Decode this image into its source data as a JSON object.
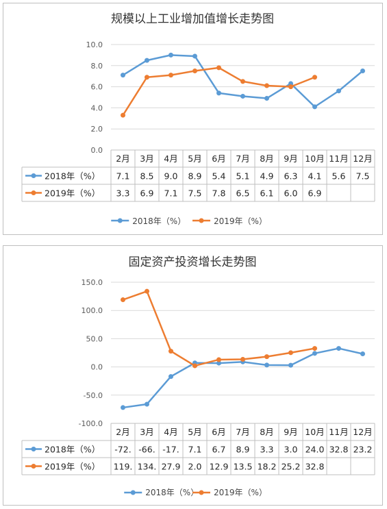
{
  "charts": [
    {
      "title": "规模以上工业增加值增长走势图",
      "chart_data": {
        "type": "line",
        "categories": [
          "2月",
          "3月",
          "4月",
          "5月",
          "6月",
          "7月",
          "8月",
          "9月",
          "10月",
          "11月",
          "12月"
        ],
        "ylim": [
          0,
          10
        ],
        "yticks": [
          "0.0",
          "2.0",
          "4.0",
          "6.0",
          "8.0",
          "10.0"
        ],
        "grid": true,
        "legend_position": "bottom",
        "series": [
          {
            "name": "2018年（%）",
            "color": "#5b9bd5",
            "values": [
              7.1,
              8.5,
              9.0,
              8.9,
              5.4,
              5.1,
              4.9,
              6.3,
              4.1,
              5.6,
              7.5
            ],
            "labels": [
              "7.1",
              "8.5",
              "9.0",
              "8.9",
              "5.4",
              "5.1",
              "4.9",
              "6.3",
              "4.1",
              "5.6",
              "7.5"
            ]
          },
          {
            "name": "2019年（%）",
            "color": "#ed7d31",
            "values": [
              3.3,
              6.9,
              7.1,
              7.5,
              7.8,
              6.5,
              6.1,
              6.0,
              6.9,
              null,
              null
            ],
            "labels": [
              "3.3",
              "6.9",
              "7.1",
              "7.5",
              "7.8",
              "6.5",
              "6.1",
              "6.0",
              "6.9",
              "",
              ""
            ]
          }
        ]
      }
    },
    {
      "title": "固定资产投资增长走势图",
      "chart_data": {
        "type": "line",
        "categories": [
          "2月",
          "3月",
          "4月",
          "5月",
          "6月",
          "7月",
          "8月",
          "9月",
          "10月",
          "11月",
          "12月"
        ],
        "ylim": [
          -100,
          150
        ],
        "yticks": [
          "-100.0",
          "-50.0",
          "0.0",
          "50.0",
          "100.0",
          "150.0"
        ],
        "grid": true,
        "legend_position": "bottom",
        "series": [
          {
            "name": "2018年（%）",
            "color": "#5b9bd5",
            "values": [
              -72,
              -66,
              -17,
              7.1,
              6.7,
              8.9,
              3.3,
              3.0,
              24.0,
              32.8,
              23.2
            ],
            "labels": [
              "-72.",
              "-66.",
              "-17.",
              "7.1",
              "6.7",
              "8.9",
              "3.3",
              "3.0",
              "24.0",
              "32.8",
              "23.2"
            ]
          },
          {
            "name": "2019年（%）",
            "color": "#ed7d31",
            "values": [
              119,
              134,
              27.9,
              2.0,
              12.9,
              13.5,
              18.2,
              25.2,
              32.8,
              null,
              null
            ],
            "labels": [
              "119.",
              "134.",
              "27.9",
              "2.0",
              "12.9",
              "13.5",
              "18.2",
              "25.2",
              "32.8",
              "",
              ""
            ]
          }
        ]
      }
    }
  ]
}
